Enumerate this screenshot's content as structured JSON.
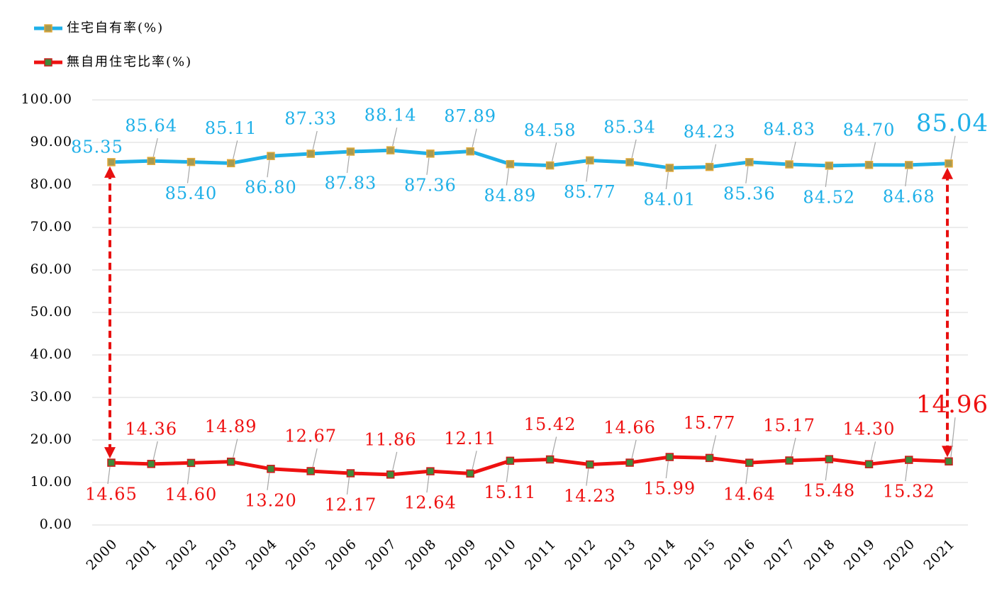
{
  "chart_data": {
    "type": "line",
    "categories": [
      "2000",
      "2001",
      "2002",
      "2003",
      "2004",
      "2005",
      "2006",
      "2007",
      "2008",
      "2009",
      "2010",
      "2011",
      "2012",
      "2013",
      "2014",
      "2015",
      "2016",
      "2017",
      "2018",
      "2019",
      "2020",
      "2021"
    ],
    "series": [
      {
        "name": "住宅自有率(%)",
        "color": "#1fb0e8",
        "marker_color": "#a89a50",
        "marker_edge": "#e0a838",
        "values": [
          85.35,
          85.64,
          85.4,
          85.11,
          86.8,
          87.33,
          87.83,
          88.14,
          87.36,
          87.89,
          84.89,
          84.58,
          85.77,
          85.34,
          84.01,
          84.23,
          85.36,
          84.83,
          84.52,
          84.7,
          84.68,
          85.04
        ],
        "value_labels": [
          "85.35",
          "85.64",
          "85.40",
          "85.11",
          "86.80",
          "87.33",
          "87.83",
          "88.14",
          "87.36",
          "87.89",
          "84.89",
          "84.58",
          "85.77",
          "85.34",
          "84.01",
          "84.23",
          "85.36",
          "84.83",
          "84.52",
          "84.70",
          "84.68",
          "85.04"
        ]
      },
      {
        "name": "無自用住宅比率(%)",
        "color": "#ee1111",
        "marker_color": "#3f8a3a",
        "marker_edge": "#cc1a1a",
        "values": [
          14.65,
          14.36,
          14.6,
          14.89,
          13.2,
          12.67,
          12.17,
          11.86,
          12.64,
          12.11,
          15.11,
          15.42,
          14.23,
          14.66,
          15.99,
          15.77,
          14.64,
          15.17,
          15.48,
          14.3,
          15.32,
          14.96
        ],
        "value_labels": [
          "14.65",
          "14.36",
          "14.60",
          "14.89",
          "13.20",
          "12.67",
          "12.17",
          "11.86",
          "12.64",
          "12.11",
          "15.11",
          "15.42",
          "14.23",
          "14.66",
          "15.99",
          "15.77",
          "14.64",
          "15.17",
          "15.48",
          "14.30",
          "15.32",
          "14.96"
        ]
      }
    ],
    "ylim": [
      0,
      100
    ],
    "yticks": [
      {
        "value": 0,
        "label": "0.00"
      },
      {
        "value": 10,
        "label": "10.00"
      },
      {
        "value": 20,
        "label": "20.00"
      },
      {
        "value": 30,
        "label": "30.00"
      },
      {
        "value": 40,
        "label": "40.00"
      },
      {
        "value": 50,
        "label": "50.00"
      },
      {
        "value": 60,
        "label": "60.00"
      },
      {
        "value": 70,
        "label": "70.00"
      },
      {
        "value": 80,
        "label": "80.00"
      },
      {
        "value": 90,
        "label": "90.00"
      },
      {
        "value": 100,
        "label": "100.00"
      }
    ],
    "grid": true,
    "legend": "top-left"
  }
}
